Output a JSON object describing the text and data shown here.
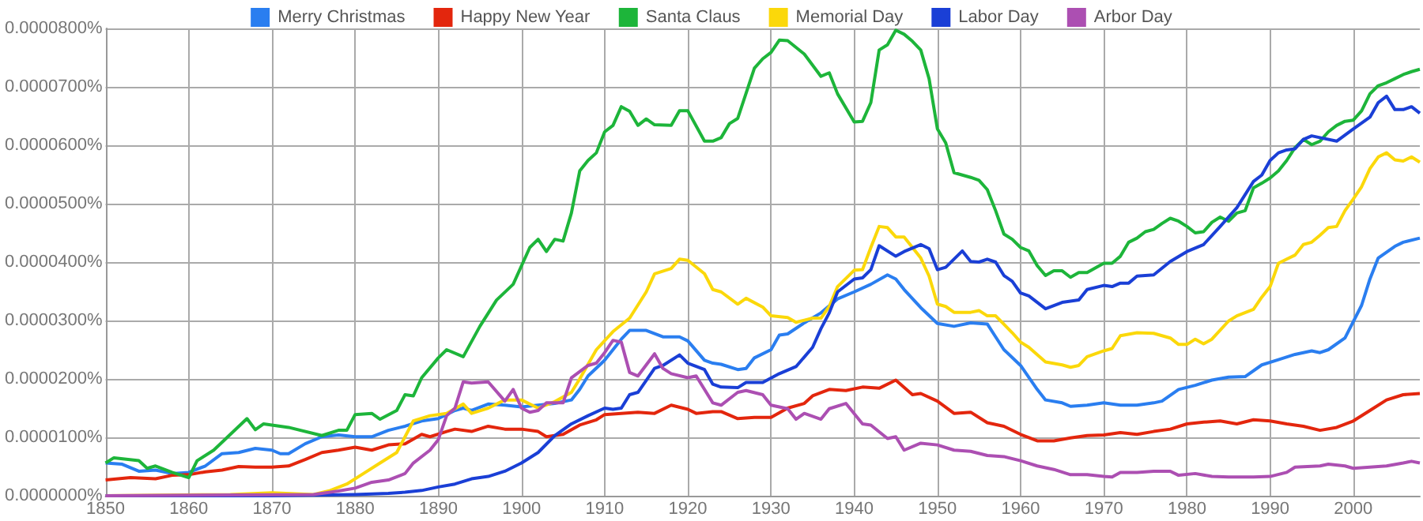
{
  "chart_data": {
    "type": "line",
    "xlim": [
      1850,
      2008
    ],
    "xticks": [
      1850,
      1860,
      1870,
      1880,
      1890,
      1900,
      1910,
      1920,
      1930,
      1940,
      1950,
      1960,
      1970,
      1980,
      1990,
      2000
    ],
    "ylim": [
      0,
      8e-05
    ],
    "yticks": [
      {
        "value": 0,
        "label": "0.0000000%"
      },
      {
        "value": 1e-05,
        "label": "0.0000100%"
      },
      {
        "value": 2e-05,
        "label": "0.0000200%"
      },
      {
        "value": 3e-05,
        "label": "0.0000300%"
      },
      {
        "value": 4e-05,
        "label": "0.0000400%"
      },
      {
        "value": 5e-05,
        "label": "0.0000500%"
      },
      {
        "value": 6e-05,
        "label": "0.0000600%"
      },
      {
        "value": 7e-05,
        "label": "0.0000700%"
      },
      {
        "value": 8e-05,
        "label": "0.0000800%"
      }
    ],
    "grid": true,
    "legend": "top",
    "series": [
      {
        "name": "Merry Christmas",
        "color": "#2a7ef0",
        "x": [
          1850,
          1852,
          1854,
          1856,
          1858,
          1860,
          1862,
          1864,
          1866,
          1868,
          1870,
          1871,
          1872,
          1874,
          1876,
          1878,
          1880,
          1882,
          1884,
          1886,
          1888,
          1890,
          1892,
          1893,
          1894,
          1896,
          1898,
          1900,
          1902,
          1904,
          1906,
          1907,
          1908,
          1910,
          1912,
          1913,
          1915,
          1917,
          1919,
          1920,
          1922,
          1923,
          1924,
          1926,
          1927,
          1928,
          1930,
          1931,
          1932,
          1934,
          1936,
          1938,
          1940,
          1942,
          1944,
          1945,
          1946,
          1948,
          1950,
          1952,
          1954,
          1956,
          1957,
          1958,
          1960,
          1962,
          1963,
          1965,
          1966,
          1968,
          1970,
          1972,
          1974,
          1976,
          1977,
          1979,
          1981,
          1983,
          1985,
          1987,
          1989,
          1991,
          1993,
          1995,
          1996,
          1997,
          1999,
          2001,
          2002,
          2003,
          2005,
          2006,
          2008
        ],
        "values": [
          5.6e-06,
          5.4e-06,
          4.2e-06,
          4.4e-06,
          3.8e-06,
          4e-06,
          5.1e-06,
          7.2e-06,
          7.4e-06,
          8.1e-06,
          7.8e-06,
          7.2e-06,
          7.2e-06,
          8.9e-06,
          1.01e-05,
          1.04e-05,
          1.01e-05,
          1.01e-05,
          1.12e-05,
          1.19e-05,
          1.28e-05,
          1.32e-05,
          1.46e-05,
          1.5e-05,
          1.46e-05,
          1.57e-05,
          1.55e-05,
          1.52e-05,
          1.55e-05,
          1.58e-05,
          1.64e-05,
          1.82e-05,
          2.05e-05,
          2.32e-05,
          2.68e-05,
          2.83e-05,
          2.83e-05,
          2.72e-05,
          2.72e-05,
          2.65e-05,
          2.32e-05,
          2.27e-05,
          2.25e-05,
          2.16e-05,
          2.18e-05,
          2.36e-05,
          2.5e-05,
          2.75e-05,
          2.77e-05,
          2.96e-05,
          3.13e-05,
          3.37e-05,
          3.49e-05,
          3.62e-05,
          3.78e-05,
          3.71e-05,
          3.53e-05,
          3.22e-05,
          2.95e-05,
          2.9e-05,
          2.96e-05,
          2.94e-05,
          2.72e-05,
          2.5e-05,
          2.23e-05,
          1.82e-05,
          1.64e-05,
          1.59e-05,
          1.53e-05,
          1.55e-05,
          1.59e-05,
          1.55e-05,
          1.55e-05,
          1.59e-05,
          1.62e-05,
          1.82e-05,
          1.89e-05,
          1.98e-05,
          2.03e-05,
          2.04e-05,
          2.24e-05,
          2.33e-05,
          2.42e-05,
          2.48e-05,
          2.45e-05,
          2.5e-05,
          2.7e-05,
          3.26e-05,
          3.71e-05,
          4.07e-05,
          4.27e-05,
          4.34e-05,
          4.41e-05
        ]
      },
      {
        "name": "Happy New Year",
        "color": "#e3260d",
        "x": [
          1850,
          1853,
          1856,
          1858,
          1860,
          1862,
          1864,
          1866,
          1868,
          1870,
          1872,
          1874,
          1876,
          1878,
          1880,
          1882,
          1884,
          1886,
          1888,
          1889,
          1891,
          1892,
          1894,
          1896,
          1898,
          1900,
          1902,
          1903,
          1905,
          1907,
          1909,
          1910,
          1912,
          1914,
          1916,
          1918,
          1920,
          1921,
          1923,
          1924,
          1926,
          1928,
          1930,
          1932,
          1934,
          1935,
          1937,
          1939,
          1941,
          1943,
          1945,
          1947,
          1948,
          1950,
          1952,
          1954,
          1956,
          1958,
          1960,
          1962,
          1964,
          1966,
          1968,
          1970,
          1972,
          1974,
          1976,
          1978,
          1980,
          1982,
          1984,
          1986,
          1988,
          1990,
          1992,
          1994,
          1996,
          1998,
          2000,
          2002,
          2004,
          2006,
          2008
        ],
        "values": [
          2.7e-06,
          3.1e-06,
          2.9e-06,
          3.5e-06,
          3.6e-06,
          4.1e-06,
          4.4e-06,
          5e-06,
          4.9e-06,
          4.9e-06,
          5.1e-06,
          6.2e-06,
          7.4e-06,
          7.8e-06,
          8.3e-06,
          7.8e-06,
          8.7e-06,
          8.9e-06,
          1.05e-05,
          1.01e-05,
          1.1e-05,
          1.14e-05,
          1.1e-05,
          1.19e-05,
          1.14e-05,
          1.14e-05,
          1.1e-05,
          1.01e-05,
          1.05e-05,
          1.21e-05,
          1.3e-05,
          1.39e-05,
          1.41e-05,
          1.43e-05,
          1.41e-05,
          1.55e-05,
          1.48e-05,
          1.41e-05,
          1.44e-05,
          1.44e-05,
          1.32e-05,
          1.34e-05,
          1.34e-05,
          1.5e-05,
          1.58e-05,
          1.71e-05,
          1.82e-05,
          1.8e-05,
          1.86e-05,
          1.84e-05,
          1.98e-05,
          1.73e-05,
          1.75e-05,
          1.62e-05,
          1.41e-05,
          1.43e-05,
          1.25e-05,
          1.19e-05,
          1.05e-05,
          9.4e-06,
          9.4e-06,
          9.9e-06,
          1.03e-05,
          1.04e-05,
          1.08e-05,
          1.05e-05,
          1.1e-05,
          1.14e-05,
          1.23e-05,
          1.26e-05,
          1.28e-05,
          1.23e-05,
          1.3e-05,
          1.28e-05,
          1.23e-05,
          1.19e-05,
          1.12e-05,
          1.17e-05,
          1.28e-05,
          1.46e-05,
          1.64e-05,
          1.73e-05,
          1.75e-05
        ]
      },
      {
        "name": "Santa Claus",
        "color": "#1db53a",
        "x": [
          1850,
          1851,
          1854,
          1855,
          1856,
          1858,
          1860,
          1861,
          1863,
          1867,
          1868,
          1869,
          1872,
          1876,
          1878,
          1879,
          1880,
          1882,
          1883,
          1885,
          1886,
          1887,
          1888,
          1890,
          1891,
          1893,
          1895,
          1897,
          1899,
          1901,
          1902,
          1903,
          1904,
          1905,
          1906,
          1907,
          1908,
          1909,
          1910,
          1911,
          1912,
          1913,
          1914,
          1915,
          1916,
          1918,
          1919,
          1920,
          1922,
          1923,
          1924,
          1925,
          1926,
          1928,
          1929,
          1930,
          1931,
          1932,
          1934,
          1936,
          1937,
          1938,
          1940,
          1941,
          1942,
          1943,
          1944,
          1945,
          1946,
          1947,
          1948,
          1949,
          1950,
          1951,
          1952,
          1954,
          1955,
          1956,
          1957,
          1958,
          1959,
          1960,
          1961,
          1962,
          1963,
          1964,
          1965,
          1966,
          1967,
          1968,
          1970,
          1971,
          1972,
          1973,
          1974,
          1975,
          1976,
          1977,
          1978,
          1979,
          1980,
          1981,
          1982,
          1983,
          1984,
          1985,
          1986,
          1987,
          1988,
          1989,
          1990,
          1991,
          1992,
          1993,
          1994,
          1995,
          1996,
          1997,
          1998,
          1999,
          2000,
          2001,
          2002,
          2003,
          2004,
          2005,
          2006,
          2007,
          2008
        ],
        "values": [
          5.6e-06,
          6.5e-06,
          6e-06,
          4.7e-06,
          5.1e-06,
          4e-06,
          3.1e-06,
          6e-06,
          7.8e-06,
          1.32e-05,
          1.13e-05,
          1.23e-05,
          1.17e-05,
          1.03e-05,
          1.12e-05,
          1.12e-05,
          1.39e-05,
          1.41e-05,
          1.31e-05,
          1.46e-05,
          1.73e-05,
          1.71e-05,
          2.02e-05,
          2.36e-05,
          2.5e-05,
          2.38e-05,
          2.9e-05,
          3.35e-05,
          3.62e-05,
          4.25e-05,
          4.39e-05,
          4.18e-05,
          4.39e-05,
          4.36e-05,
          4.84e-05,
          5.56e-05,
          5.74e-05,
          5.87e-05,
          6.23e-05,
          6.34e-05,
          6.66e-05,
          6.58e-05,
          6.34e-05,
          6.45e-05,
          6.35e-05,
          6.34e-05,
          6.59e-05,
          6.59e-05,
          6.07e-05,
          6.07e-05,
          6.13e-05,
          6.37e-05,
          6.46e-05,
          7.32e-05,
          7.48e-05,
          7.59e-05,
          7.8e-05,
          7.79e-05,
          7.56e-05,
          7.18e-05,
          7.24e-05,
          6.88e-05,
          6.4e-05,
          6.41e-05,
          6.73e-05,
          7.63e-05,
          7.72e-05,
          7.97e-05,
          7.9e-05,
          7.78e-05,
          7.63e-05,
          7.14e-05,
          6.28e-05,
          6.04e-05,
          5.53e-05,
          5.45e-05,
          5.4e-05,
          5.24e-05,
          4.88e-05,
          4.48e-05,
          4.39e-05,
          4.25e-05,
          4.19e-05,
          3.94e-05,
          3.77e-05,
          3.85e-05,
          3.85e-05,
          3.74e-05,
          3.82e-05,
          3.82e-05,
          3.98e-05,
          3.98e-05,
          4.1e-05,
          4.34e-05,
          4.41e-05,
          4.52e-05,
          4.56e-05,
          4.66e-05,
          4.75e-05,
          4.7e-05,
          4.61e-05,
          4.5e-05,
          4.52e-05,
          4.68e-05,
          4.77e-05,
          4.7e-05,
          4.84e-05,
          4.88e-05,
          5.27e-05,
          5.35e-05,
          5.44e-05,
          5.56e-05,
          5.74e-05,
          5.96e-05,
          6.1e-05,
          6.01e-05,
          6.07e-05,
          6.23e-05,
          6.34e-05,
          6.41e-05,
          6.43e-05,
          6.59e-05,
          6.88e-05,
          7.02e-05,
          7.07e-05,
          7.14e-05,
          7.21e-05,
          7.26e-05,
          7.3e-05
        ]
      },
      {
        "name": "Memorial Day",
        "color": "#fbd80a",
        "x": [
          1850,
          1865,
          1870,
          1875,
          1877,
          1879,
          1881,
          1883,
          1885,
          1886,
          1887,
          1889,
          1891,
          1893,
          1894,
          1896,
          1898,
          1900,
          1902,
          1904,
          1906,
          1907,
          1909,
          1911,
          1913,
          1915,
          1916,
          1918,
          1919,
          1920,
          1922,
          1923,
          1924,
          1926,
          1927,
          1929,
          1930,
          1932,
          1933,
          1935,
          1936,
          1937,
          1938,
          1940,
          1941,
          1942,
          1943,
          1944,
          1945,
          1946,
          1948,
          1949,
          1950,
          1951,
          1952,
          1954,
          1955,
          1956,
          1957,
          1959,
          1960,
          1961,
          1963,
          1965,
          1966,
          1967,
          1968,
          1970,
          1971,
          1972,
          1974,
          1976,
          1978,
          1979,
          1980,
          1981,
          1982,
          1983,
          1985,
          1986,
          1988,
          1989,
          1990,
          1991,
          1992,
          1993,
          1994,
          1995,
          1996,
          1997,
          1998,
          1999,
          2000,
          2001,
          2002,
          2003,
          2004,
          2005,
          2006,
          2007,
          2008
        ],
        "values": [
          0,
          2e-07,
          5e-07,
          2e-07,
          9e-07,
          2e-06,
          3.8e-06,
          5.6e-06,
          7.4e-06,
          1.01e-05,
          1.28e-05,
          1.37e-05,
          1.41e-05,
          1.57e-05,
          1.41e-05,
          1.5e-05,
          1.64e-05,
          1.64e-05,
          1.5e-05,
          1.61e-05,
          1.77e-05,
          2e-05,
          2.5e-05,
          2.81e-05,
          3.04e-05,
          3.49e-05,
          3.8e-05,
          3.89e-05,
          4.05e-05,
          4.03e-05,
          3.8e-05,
          3.53e-05,
          3.49e-05,
          3.28e-05,
          3.38e-05,
          3.23e-05,
          3.08e-05,
          3.05e-05,
          2.97e-05,
          3.04e-05,
          3.04e-05,
          3.24e-05,
          3.58e-05,
          3.86e-05,
          3.87e-05,
          4.25e-05,
          4.61e-05,
          4.59e-05,
          4.43e-05,
          4.43e-05,
          4.07e-05,
          3.76e-05,
          3.28e-05,
          3.24e-05,
          3.14e-05,
          3.14e-05,
          3.17e-05,
          3.08e-05,
          3.08e-05,
          2.79e-05,
          2.63e-05,
          2.54e-05,
          2.29e-05,
          2.24e-05,
          2.2e-05,
          2.23e-05,
          2.38e-05,
          2.48e-05,
          2.52e-05,
          2.74e-05,
          2.79e-05,
          2.78e-05,
          2.7e-05,
          2.59e-05,
          2.59e-05,
          2.68e-05,
          2.6e-05,
          2.68e-05,
          2.99e-05,
          3.08e-05,
          3.19e-05,
          3.4e-05,
          3.58e-05,
          3.98e-05,
          4.05e-05,
          4.12e-05,
          4.3e-05,
          4.34e-05,
          4.46e-05,
          4.59e-05,
          4.61e-05,
          4.88e-05,
          5.08e-05,
          5.29e-05,
          5.6e-05,
          5.8e-05,
          5.87e-05,
          5.75e-05,
          5.73e-05,
          5.8e-05,
          5.71e-05
        ]
      },
      {
        "name": "Labor Day",
        "color": "#1a3fd6",
        "x": [
          1850,
          1870,
          1880,
          1884,
          1886,
          1888,
          1890,
          1892,
          1894,
          1896,
          1898,
          1900,
          1902,
          1904,
          1906,
          1908,
          1910,
          1911,
          1912,
          1913,
          1914,
          1916,
          1917,
          1919,
          1920,
          1922,
          1923,
          1924,
          1926,
          1927,
          1929,
          1931,
          1933,
          1935,
          1936,
          1937,
          1938,
          1940,
          1941,
          1942,
          1943,
          1945,
          1946,
          1948,
          1949,
          1950,
          1951,
          1953,
          1954,
          1955,
          1956,
          1957,
          1958,
          1959,
          1960,
          1961,
          1963,
          1965,
          1967,
          1968,
          1970,
          1971,
          1972,
          1973,
          1974,
          1976,
          1978,
          1980,
          1982,
          1984,
          1986,
          1988,
          1989,
          1990,
          1991,
          1992,
          1993,
          1994,
          1995,
          1996,
          1998,
          2000,
          2002,
          2003,
          2004,
          2005,
          2006,
          2007,
          2008
        ],
        "values": [
          0,
          0,
          2e-07,
          4e-07,
          6e-07,
          9e-07,
          1.5e-06,
          2e-06,
          2.9e-06,
          3.3e-06,
          4.2e-06,
          5.6e-06,
          7.4e-06,
          1.03e-05,
          1.23e-05,
          1.37e-05,
          1.5e-05,
          1.48e-05,
          1.5e-05,
          1.73e-05,
          1.77e-05,
          2.18e-05,
          2.23e-05,
          2.41e-05,
          2.27e-05,
          2.16e-05,
          1.91e-05,
          1.86e-05,
          1.85e-05,
          1.94e-05,
          1.94e-05,
          2.09e-05,
          2.21e-05,
          2.54e-05,
          2.86e-05,
          3.13e-05,
          3.49e-05,
          3.71e-05,
          3.73e-05,
          3.87e-05,
          4.28e-05,
          4.1e-05,
          4.18e-05,
          4.3e-05,
          4.23e-05,
          3.87e-05,
          3.91e-05,
          4.19e-05,
          4.01e-05,
          4e-05,
          4.05e-05,
          4e-05,
          3.77e-05,
          3.67e-05,
          3.47e-05,
          3.42e-05,
          3.2e-05,
          3.31e-05,
          3.35e-05,
          3.53e-05,
          3.6e-05,
          3.58e-05,
          3.64e-05,
          3.64e-05,
          3.76e-05,
          3.78e-05,
          4.01e-05,
          4.18e-05,
          4.3e-05,
          4.61e-05,
          4.93e-05,
          5.38e-05,
          5.49e-05,
          5.74e-05,
          5.87e-05,
          5.92e-05,
          5.94e-05,
          6.1e-05,
          6.16e-05,
          6.13e-05,
          6.07e-05,
          6.28e-05,
          6.48e-05,
          6.73e-05,
          6.84e-05,
          6.61e-05,
          6.61e-05,
          6.66e-05,
          6.55e-05
        ]
      },
      {
        "name": "Arbor Day",
        "color": "#ac4fb2",
        "x": [
          1850,
          1875,
          1878,
          1880,
          1882,
          1884,
          1886,
          1887,
          1889,
          1890,
          1891,
          1892,
          1893,
          1894,
          1896,
          1898,
          1899,
          1900,
          1901,
          1902,
          1903,
          1904,
          1905,
          1906,
          1908,
          1909,
          1910,
          1911,
          1912,
          1913,
          1914,
          1916,
          1917,
          1918,
          1920,
          1921,
          1923,
          1924,
          1926,
          1927,
          1929,
          1930,
          1932,
          1933,
          1934,
          1936,
          1937,
          1939,
          1941,
          1942,
          1944,
          1945,
          1946,
          1948,
          1950,
          1952,
          1954,
          1956,
          1958,
          1960,
          1962,
          1964,
          1966,
          1968,
          1970,
          1971,
          1972,
          1974,
          1976,
          1978,
          1979,
          1981,
          1983,
          1985,
          1988,
          1990,
          1992,
          1993,
          1996,
          1997,
          1999,
          2000,
          2002,
          2004,
          2006,
          2007,
          2008
        ],
        "values": [
          0,
          2e-07,
          8e-07,
          1.3e-06,
          2.3e-06,
          2.7e-06,
          3.8e-06,
          5.6e-06,
          7.8e-06,
          9.6e-06,
          1.37e-05,
          1.5e-05,
          1.95e-05,
          1.93e-05,
          1.95e-05,
          1.62e-05,
          1.82e-05,
          1.5e-05,
          1.43e-05,
          1.46e-05,
          1.59e-05,
          1.59e-05,
          1.59e-05,
          2.02e-05,
          2.23e-05,
          2.27e-05,
          2.45e-05,
          2.66e-05,
          2.63e-05,
          2.11e-05,
          2.05e-05,
          2.43e-05,
          2.18e-05,
          2.09e-05,
          2.02e-05,
          2.05e-05,
          1.59e-05,
          1.55e-05,
          1.77e-05,
          1.8e-05,
          1.73e-05,
          1.55e-05,
          1.49e-05,
          1.31e-05,
          1.41e-05,
          1.31e-05,
          1.49e-05,
          1.58e-05,
          1.23e-05,
          1.21e-05,
          9.8e-06,
          1.01e-05,
          7.8e-06,
          9e-06,
          8.7e-06,
          7.8e-06,
          7.6e-06,
          6.9e-06,
          6.7e-06,
          6e-06,
          5.1e-06,
          4.5e-06,
          3.6e-06,
          3.6e-06,
          3.3e-06,
          3.2e-06,
          4e-06,
          4e-06,
          4.2e-06,
          4.2e-06,
          3.5e-06,
          3.8e-06,
          3.3e-06,
          3.2e-06,
          3.2e-06,
          3.3e-06,
          4e-06,
          4.9e-06,
          5.1e-06,
          5.4e-06,
          5.1e-06,
          4.7e-06,
          4.9e-06,
          5.1e-06,
          5.6e-06,
          5.9e-06,
          5.6e-06
        ]
      }
    ]
  }
}
